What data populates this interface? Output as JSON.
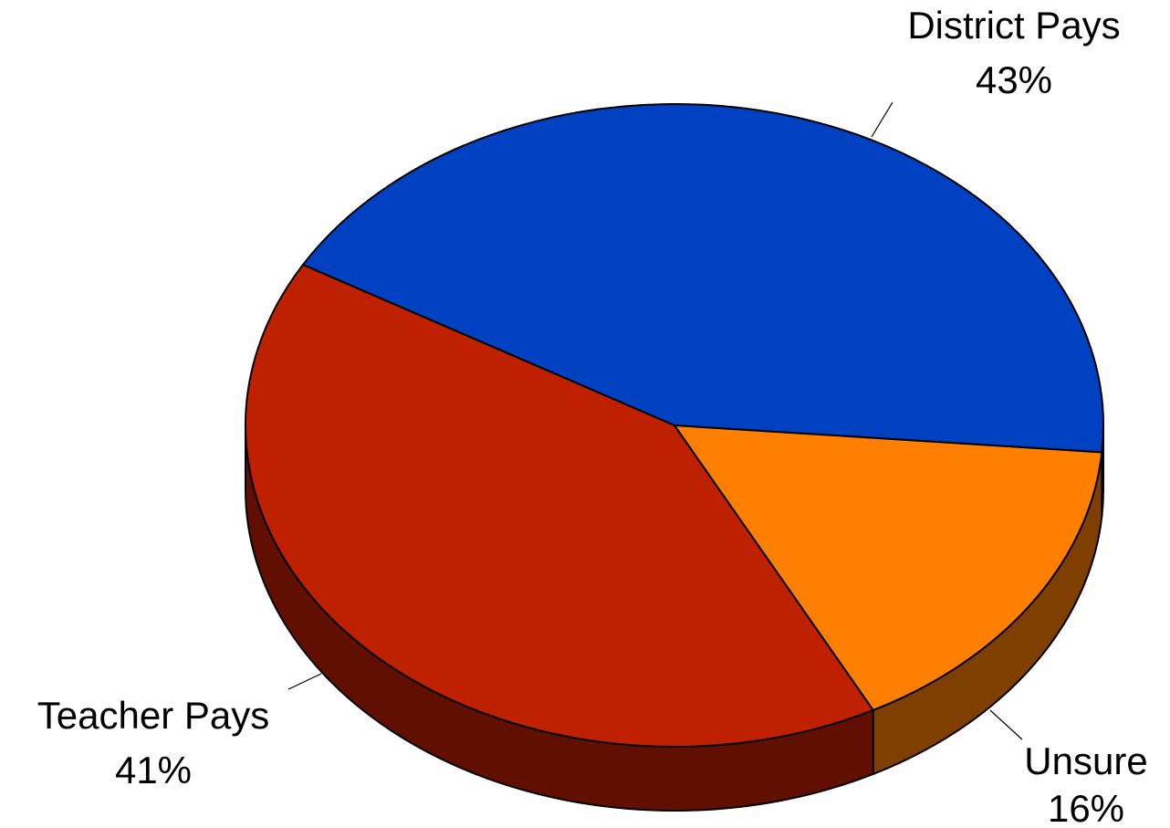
{
  "chart_data": {
    "type": "pie",
    "style": "3d",
    "title": "",
    "slices": [
      {
        "label": "District Pays",
        "value": 43,
        "value_label": "43%",
        "color": "#0041C2",
        "side_color": "#001A66"
      },
      {
        "label": "Unsure",
        "value": 16,
        "value_label": "16%",
        "color": "#FF7F00",
        "side_color": "#7F3F00"
      },
      {
        "label": "Teacher Pays",
        "value": 41,
        "value_label": "41%",
        "color": "#BF2000",
        "side_color": "#600F00"
      }
    ],
    "legend": "none"
  }
}
